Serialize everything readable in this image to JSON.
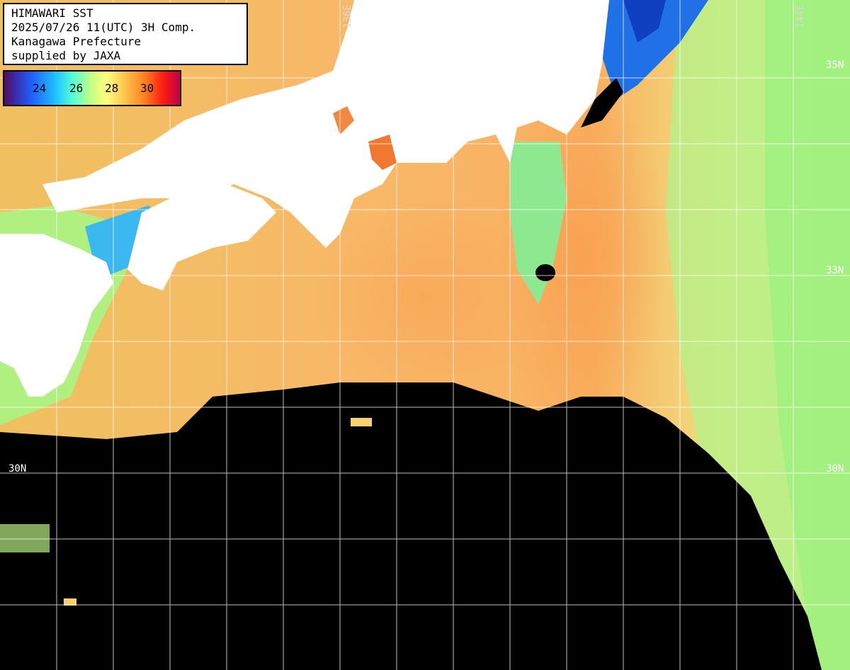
{
  "header": {
    "line1": "HIMAWARI SST",
    "line2": "2025/07/26 11(UTC) 3H Comp.",
    "line3": "Kanagawa Prefecture",
    "line4": "supplied by JAXA"
  },
  "legend": {
    "ticks": [
      "24",
      "26",
      "28",
      "30"
    ],
    "colors": [
      "#5a0a5a",
      "#2060ff",
      "#20c8ff",
      "#c8ff80",
      "#ffff80",
      "#ff8020",
      "#c0004a"
    ]
  },
  "graticule": {
    "lat_labels": [
      "35N",
      "33N",
      "30N",
      "30N"
    ],
    "lon_labels": [
      "136E",
      "144E"
    ]
  },
  "colors": {
    "land": "#ffffff",
    "no_data": "#000000",
    "warm_sea": "#f8b060",
    "mid_sea": "#f8e878",
    "cool_sea": "#9ef080",
    "cold_sea": "#2080f0",
    "grid": "#ffffff"
  }
}
